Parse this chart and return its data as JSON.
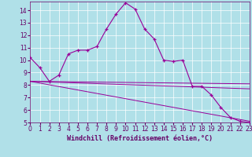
{
  "xlabel": "Windchill (Refroidissement éolien,°C)",
  "bg_color": "#b0e0e8",
  "line_color": "#990099",
  "grid_color": "#ffffff",
  "x_main": [
    0,
    1,
    2,
    3,
    4,
    5,
    6,
    7,
    8,
    9,
    10,
    11,
    12,
    13,
    14,
    15,
    16,
    17,
    18,
    19,
    20,
    21,
    22,
    23
  ],
  "y_main": [
    10.2,
    9.4,
    8.3,
    8.8,
    10.5,
    10.8,
    10.8,
    11.1,
    12.5,
    13.7,
    14.6,
    14.1,
    12.5,
    11.7,
    10.0,
    9.9,
    10.0,
    7.9,
    7.9,
    7.2,
    6.2,
    5.4,
    5.1,
    5.0
  ],
  "straight_lines": [
    {
      "x": [
        0,
        23
      ],
      "y": [
        8.3,
        8.1
      ]
    },
    {
      "x": [
        0,
        23
      ],
      "y": [
        8.3,
        7.7
      ]
    },
    {
      "x": [
        0,
        23
      ],
      "y": [
        8.3,
        5.1
      ]
    }
  ],
  "xlim": [
    0,
    23
  ],
  "ylim": [
    5,
    14.7
  ],
  "yticks": [
    5,
    6,
    7,
    8,
    9,
    10,
    11,
    12,
    13,
    14
  ],
  "xticks": [
    0,
    1,
    2,
    3,
    4,
    5,
    6,
    7,
    8,
    9,
    10,
    11,
    12,
    13,
    14,
    15,
    16,
    17,
    18,
    19,
    20,
    21,
    22,
    23
  ],
  "tick_fontsize": 5.5,
  "xlabel_fontsize": 6,
  "xlabel_color": "#660066",
  "tick_color": "#660066"
}
